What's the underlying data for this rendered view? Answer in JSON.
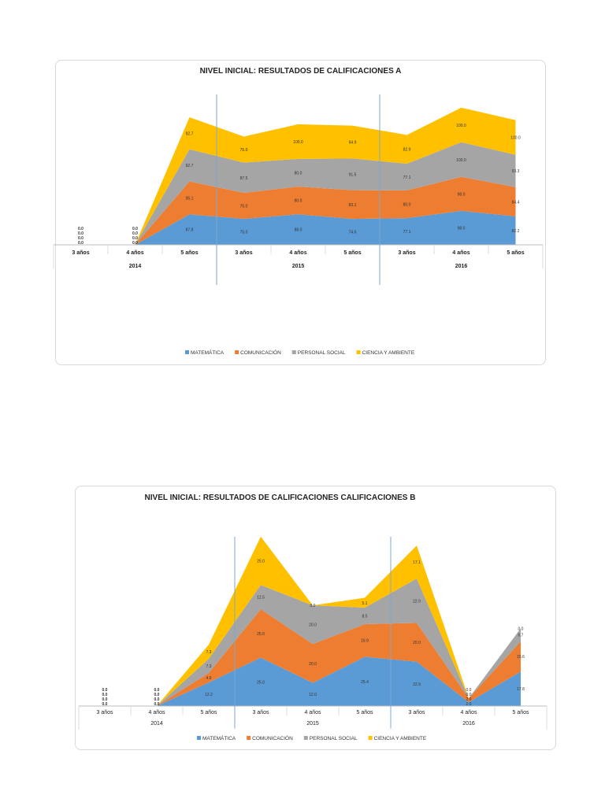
{
  "colors": {
    "MATEMÁTICA": "#5b9bd5",
    "COMUNICACIÓN": "#ed7d31",
    "PERSONAL SOCIAL": "#a5a5a5",
    "CIENCIA Y AMBIENTE": "#ffc000"
  },
  "chart_data": [
    {
      "type": "area",
      "stacked": true,
      "title": "NIVEL INICIAL: RESULTADOS DE CALIFICACIONES A",
      "categories": [
        "3 años",
        "4 años",
        "5 años",
        "3 años",
        "4 años",
        "5 años",
        "3 años",
        "4 años",
        "5 años"
      ],
      "groups": [
        "2014",
        "2015",
        "2016"
      ],
      "legend_position": "bottom",
      "grid": false,
      "series": [
        {
          "name": "MATEMÁTICA",
          "values": [
            0,
            0,
            87.8,
            75.0,
            88.0,
            74.6,
            77.1,
            98.0,
            82.2
          ]
        },
        {
          "name": "COMUNICACIÓN",
          "values": [
            0,
            0,
            95.1,
            75.0,
            80.0,
            83.1,
            80.0,
            98.0,
            84.4
          ]
        },
        {
          "name": "PERSONAL SOCIAL",
          "values": [
            0,
            0,
            92.7,
            87.5,
            80.0,
            91.5,
            77.1,
            100.0,
            93.3
          ]
        },
        {
          "name": "CIENCIA Y AMBIENTE",
          "values": [
            0,
            0,
            92.7,
            75.0,
            100.0,
            94.9,
            82.9,
            100.0,
            100.0
          ]
        }
      ]
    },
    {
      "type": "area",
      "stacked": true,
      "title": "NIVEL INICIAL: RESULTADOS DE CALIFICACIONES CALIFICACIONES B",
      "categories": [
        "3 años",
        "4 años",
        "5 años",
        "3 años",
        "4 años",
        "5 años",
        "3 años",
        "4 años",
        "5 años"
      ],
      "groups": [
        "2014",
        "2015",
        "2016"
      ],
      "legend_position": "bottom",
      "grid": false,
      "series": [
        {
          "name": "MATEMÁTICA",
          "values": [
            0,
            0,
            12.2,
            25.0,
            12.0,
            25.4,
            22.9,
            2.0,
            17.8
          ]
        },
        {
          "name": "COMUNICACIÓN",
          "values": [
            0,
            0,
            4.9,
            25.0,
            20.0,
            16.9,
            20.0,
            2.0,
            15.6
          ]
        },
        {
          "name": "PERSONAL SOCIAL",
          "values": [
            0,
            0,
            7.3,
            12.5,
            20.0,
            8.5,
            22.9,
            0.0,
            6.7
          ]
        },
        {
          "name": "CIENCIA Y AMBIENTE",
          "values": [
            0,
            0,
            7.3,
            25.0,
            0.0,
            5.1,
            17.1,
            0.0,
            0.0
          ]
        }
      ]
    }
  ]
}
